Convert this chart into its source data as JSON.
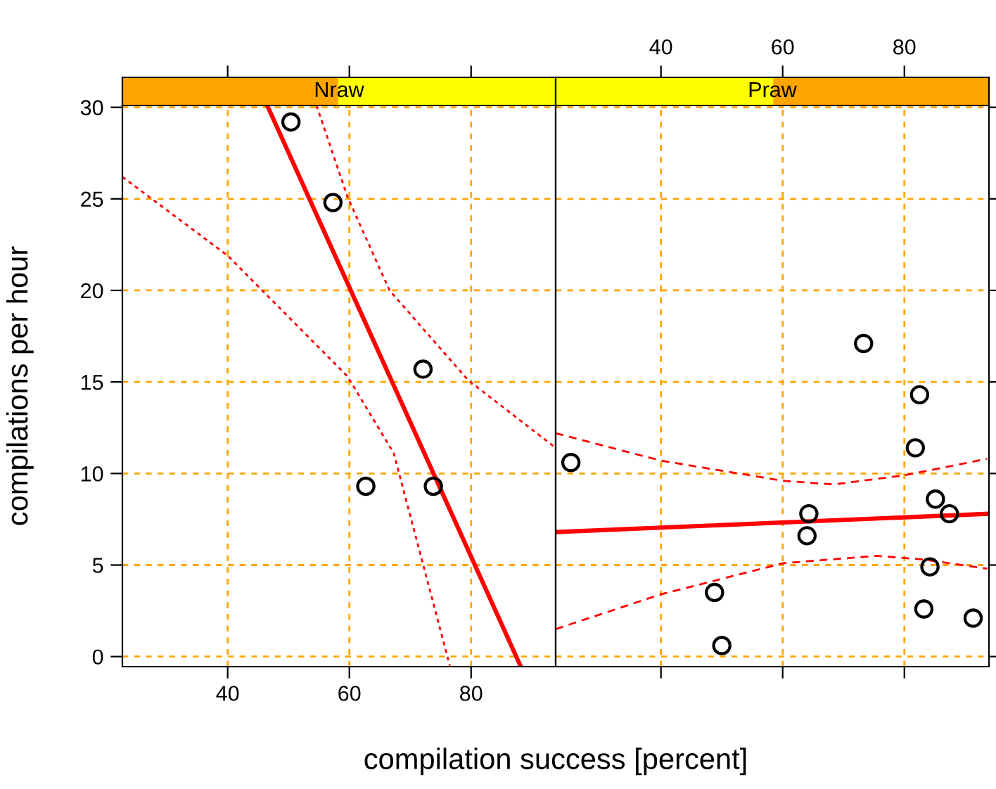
{
  "chart_data": [
    {
      "type": "scatter",
      "title": "Nraw",
      "xlabel": "compilation success [percent]",
      "ylabel": "compilations per hour",
      "xlim": [
        22.7,
        93.9
      ],
      "ylim": [
        -0.55,
        30.1
      ],
      "xticks": [
        40,
        60,
        80
      ],
      "yticks": [
        0,
        5,
        10,
        15,
        20,
        25,
        30
      ],
      "grid": true,
      "marker": "circle",
      "series": [
        {
          "color": "#000000",
          "x": [
            50.4,
            57.3,
            72.1,
            62.7,
            73.8
          ],
          "values": [
            29.2,
            24.8,
            15.7,
            9.3,
            9.3
          ]
        },
        {
          "type": "line",
          "marker": "none",
          "color": "#ff0000",
          "line_style": "solid",
          "x": [
            46.5,
            88.1
          ],
          "values": [
            30.1,
            -0.5
          ]
        },
        {
          "type": "line",
          "marker": "none",
          "color": "#ff0000",
          "line_style": "dotted",
          "x": [
            54.6,
            59.7,
            66.6,
            79.5,
            93.9
          ],
          "values": [
            30.1,
            25.1,
            20.0,
            15.1,
            11.4
          ]
        },
        {
          "type": "line",
          "marker": "none",
          "color": "#ff0000",
          "line_style": "dotted",
          "x": [
            22.7,
            40,
            59.7,
            67.3,
            76.5
          ],
          "values": [
            26.2,
            21.9,
            15.3,
            11.1,
            -0.5
          ]
        }
      ]
    },
    {
      "type": "scatter",
      "title": "Praw",
      "xlim": [
        22.7,
        93.9
      ],
      "ylim": [
        -0.55,
        30.1
      ],
      "xticks": [
        40,
        60,
        80
      ],
      "yticks": [
        0,
        5,
        10,
        15,
        20,
        25,
        30
      ],
      "tick_labels": "x",
      "grid": true,
      "marker": "circle",
      "series": [
        {
          "color": "#000000",
          "x": [
            25.2,
            48.8,
            50.0,
            64.3,
            64.0,
            73.3,
            82.5,
            81.8,
            85.1,
            87.4,
            84.2,
            83.2,
            91.3
          ],
          "values": [
            10.6,
            3.5,
            0.6,
            7.8,
            6.6,
            17.1,
            14.3,
            11.4,
            8.6,
            7.8,
            4.9,
            2.6,
            2.1
          ]
        },
        {
          "type": "line",
          "marker": "none",
          "color": "#ff0000",
          "line_style": "solid",
          "x": [
            22.7,
            93.9
          ],
          "values": [
            6.8,
            7.8
          ]
        },
        {
          "type": "line",
          "marker": "none",
          "color": "#ff0000",
          "line_style": "dashed",
          "x": [
            22.7,
            40,
            60.1,
            68.4,
            80,
            93.6
          ],
          "values": [
            12.2,
            10.7,
            9.6,
            9.4,
            9.9,
            10.8
          ]
        },
        {
          "type": "line",
          "marker": "none",
          "color": "#ff0000",
          "line_style": "dashed",
          "x": [
            22.7,
            40,
            60.1,
            75.4,
            83.2,
            93.6
          ],
          "values": [
            1.5,
            3.4,
            5.1,
            5.5,
            5.3,
            4.8
          ]
        }
      ]
    }
  ]
}
